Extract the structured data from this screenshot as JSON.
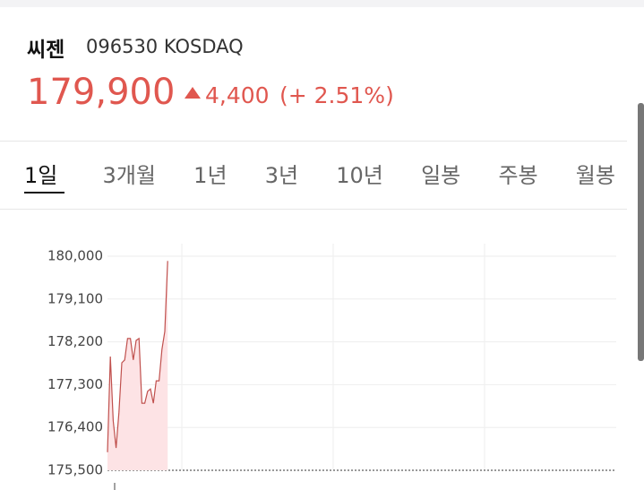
{
  "header": {
    "name": "씨젠",
    "code": "096530 KOSDAQ",
    "price": "179,900",
    "change": "4,400",
    "change_pct": "(+ 2.51%)"
  },
  "tabs": [
    "1일",
    "3개월",
    "1년",
    "3년",
    "10년",
    "일봉",
    "주봉",
    "월봉"
  ],
  "selected_tab": 0,
  "chart_data": {
    "type": "line",
    "color": "#c0504d",
    "fill": "#fde3e5",
    "values": [
      175880,
      177890,
      176540,
      175970,
      176720,
      177760,
      177820,
      178270,
      178270,
      177820,
      178230,
      178270,
      176910,
      176910,
      177160,
      177210,
      176910,
      177380,
      177380,
      178040,
      178420,
      179900
    ],
    "ylim": [
      175500,
      180000
    ],
    "yticks": [
      {
        "value": 175500,
        "label": "175,500"
      },
      {
        "value": 176400,
        "label": "176,400"
      },
      {
        "value": 177300,
        "label": "177,300"
      },
      {
        "value": 178200,
        "label": "178,200"
      },
      {
        "value": 179100,
        "label": "179,100"
      },
      {
        "value": 180000,
        "label": "180,000"
      }
    ],
    "grid": true
  }
}
